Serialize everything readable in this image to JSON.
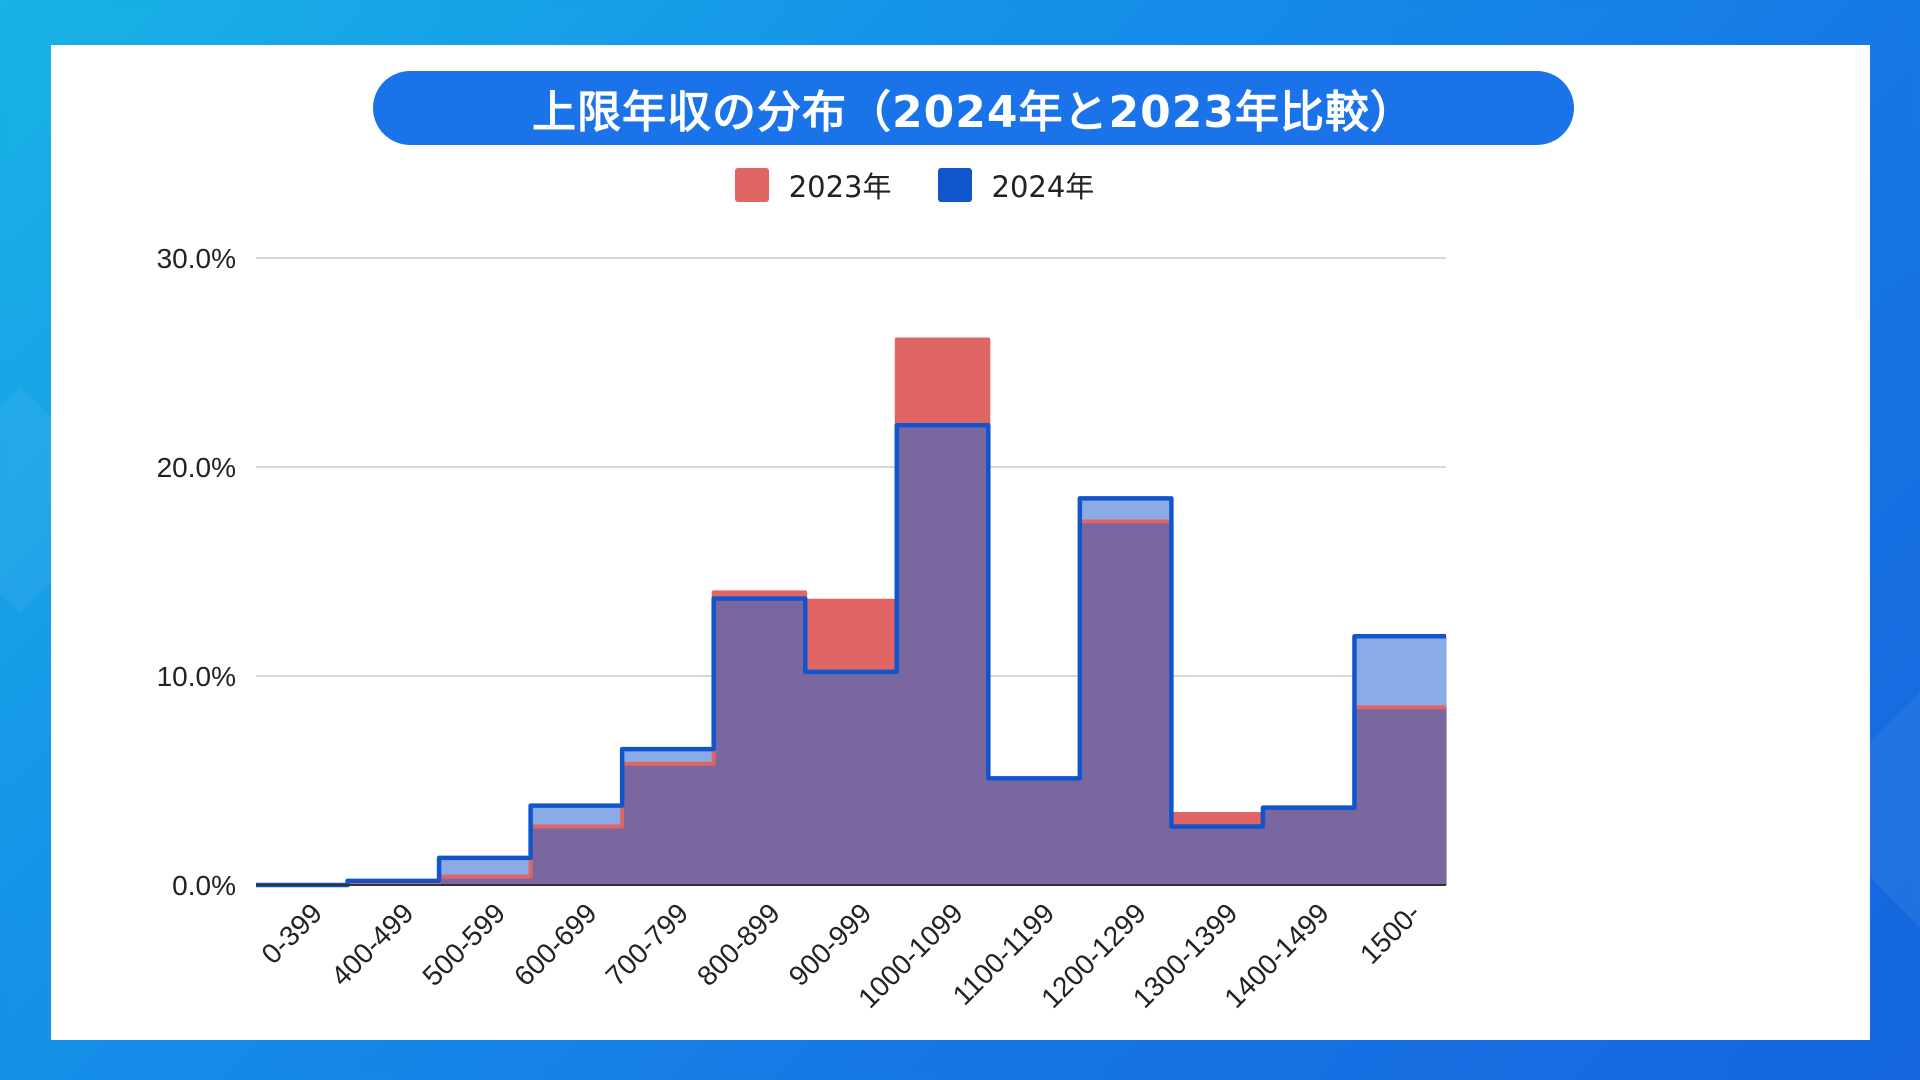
{
  "title": "上限年収の分布（2024年と2023年比較）",
  "colors": {
    "series_2023": "#e06666",
    "series_2024": "#1155cc",
    "overlap": "#7b67a0",
    "area_2024": "#8aabe6",
    "grid": "#cccccc"
  },
  "chart_data": {
    "type": "area",
    "step": true,
    "categories": [
      "0-399",
      "400-499",
      "500-599",
      "600-699",
      "700-799",
      "800-899",
      "900-999",
      "1000-1099",
      "1100-1199",
      "1200-1299",
      "1300-1399",
      "1400-1499",
      "1500-"
    ],
    "series": [
      {
        "name": "2023年",
        "values": [
          0.0,
          0.1,
          0.4,
          2.8,
          5.8,
          14.0,
          13.6,
          26.1,
          5.1,
          17.4,
          3.4,
          3.7,
          8.5
        ]
      },
      {
        "name": "2024年",
        "values": [
          0.0,
          0.2,
          1.3,
          3.8,
          6.5,
          13.7,
          10.2,
          22.0,
          5.1,
          18.5,
          2.8,
          3.7,
          11.9
        ]
      }
    ],
    "y_ticks": [
      "0.0%",
      "10.0%",
      "20.0%",
      "30.0%"
    ],
    "ylim": [
      0,
      30
    ],
    "legend_position": "top",
    "grid": true
  }
}
